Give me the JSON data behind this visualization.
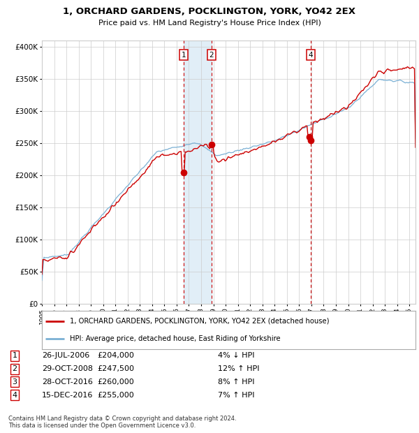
{
  "title_line1": "1, ORCHARD GARDENS, POCKLINGTON, YORK, YO42 2EX",
  "title_line2": "Price paid vs. HM Land Registry's House Price Index (HPI)",
  "ylabel_ticks": [
    "£0",
    "£50K",
    "£100K",
    "£150K",
    "£200K",
    "£250K",
    "£300K",
    "£350K",
    "£400K"
  ],
  "ylabel_vals": [
    0,
    50000,
    100000,
    150000,
    200000,
    250000,
    300000,
    350000,
    400000
  ],
  "xlim": [
    1995.0,
    2025.5
  ],
  "ylim": [
    0,
    410000
  ],
  "legend_line1": "1, ORCHARD GARDENS, POCKLINGTON, YORK, YO42 2EX (detached house)",
  "legend_line2": "HPI: Average price, detached house, East Riding of Yorkshire",
  "transactions": [
    {
      "num": 1,
      "date": "26-JUL-2006",
      "year": 2006.56,
      "price": 204000,
      "pct": "4%",
      "dir": "↓"
    },
    {
      "num": 2,
      "date": "29-OCT-2008",
      "year": 2008.83,
      "price": 247500,
      "pct": "12%",
      "dir": "↑"
    },
    {
      "num": 3,
      "date": "28-OCT-2016",
      "year": 2016.83,
      "price": 260000,
      "pct": "8%",
      "dir": "↑"
    },
    {
      "num": 4,
      "date": "15-DEC-2016",
      "year": 2016.96,
      "price": 255000,
      "pct": "7%",
      "dir": "↑"
    }
  ],
  "shade_start": 2006.56,
  "shade_end": 2008.83,
  "vline1": 2006.56,
  "vline2": 2008.83,
  "vline3": 2016.96,
  "footnote1": "Contains HM Land Registry data © Crown copyright and database right 2024.",
  "footnote2": "This data is licensed under the Open Government Licence v3.0.",
  "red_color": "#cc0000",
  "blue_color": "#7ab0d4",
  "shade_color": "#daeaf5",
  "background_color": "#ffffff",
  "grid_color": "#cccccc"
}
